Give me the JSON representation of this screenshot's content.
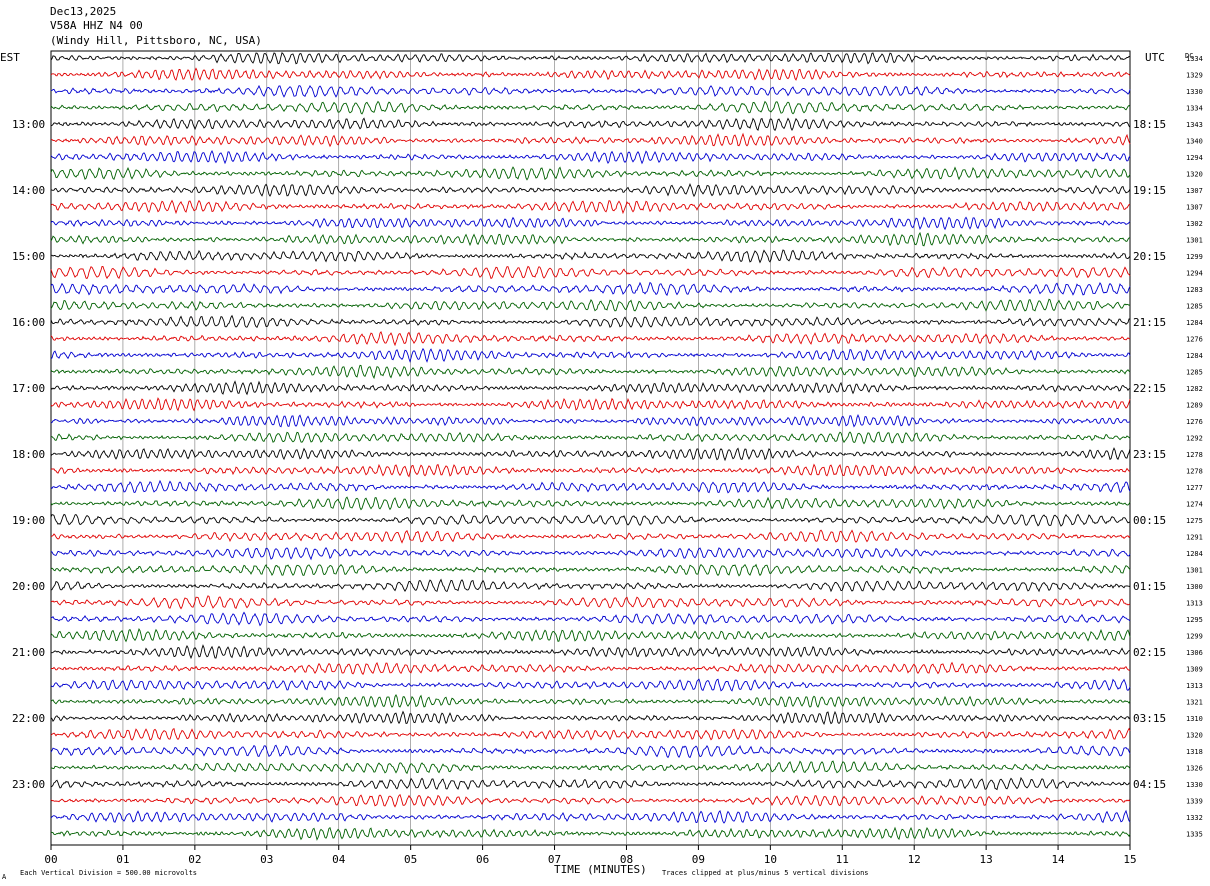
{
  "header": {
    "date": "Dec13,2025",
    "station": "V58A HHZ N4 00",
    "location": "(Windy Hill, Pittsboro, NC, USA)"
  },
  "chart_data": {
    "type": "line",
    "title": "",
    "left_axis_label": "EST",
    "right_axis_label": "UTC",
    "dc_label": "DC",
    "xlabel": "TIME (MINUTES)",
    "x_ticks": [
      "00",
      "01",
      "02",
      "03",
      "04",
      "05",
      "06",
      "07",
      "08",
      "09",
      "10",
      "11",
      "12",
      "13",
      "14",
      "15"
    ],
    "xlim": [
      0,
      15
    ],
    "grid": true,
    "trace_colors": [
      "#000000",
      "#e00000",
      "#0000d0",
      "#006000"
    ],
    "left_hour_labels": [
      "13:00",
      "14:00",
      "15:00",
      "16:00",
      "17:00",
      "18:00",
      "19:00",
      "20:00",
      "21:00",
      "22:00",
      "23:00"
    ],
    "right_hour_labels": [
      "18:15",
      "19:15",
      "20:15",
      "21:15",
      "22:15",
      "23:15",
      "00:15",
      "01:15",
      "02:15",
      "03:15",
      "04:15"
    ],
    "dc_offsets": [
      "1334",
      "1329",
      "1330",
      "1334",
      "1343",
      "1340",
      "1294",
      "1320",
      "1307",
      "1307",
      "1302",
      "1301",
      "1299",
      "1294",
      "1283",
      "1285",
      "1284",
      "1276",
      "1284",
      "1285",
      "1282",
      "1289",
      "1276",
      "1292",
      "1278",
      "1278",
      "1277",
      "1274",
      "1275",
      "1291",
      "1284",
      "1301",
      "1300",
      "1313",
      "1295",
      "1299",
      "1306",
      "1309",
      "1313",
      "1321",
      "1310",
      "1320",
      "1318",
      "1326",
      "1330",
      "1339",
      "1332",
      "1335"
    ],
    "footer_left": "Each Vertical Division =  500.00 microvolts",
    "footer_right": "Traces clipped at plus/minus 5 vertical divisions",
    "corner_mark": "A"
  }
}
